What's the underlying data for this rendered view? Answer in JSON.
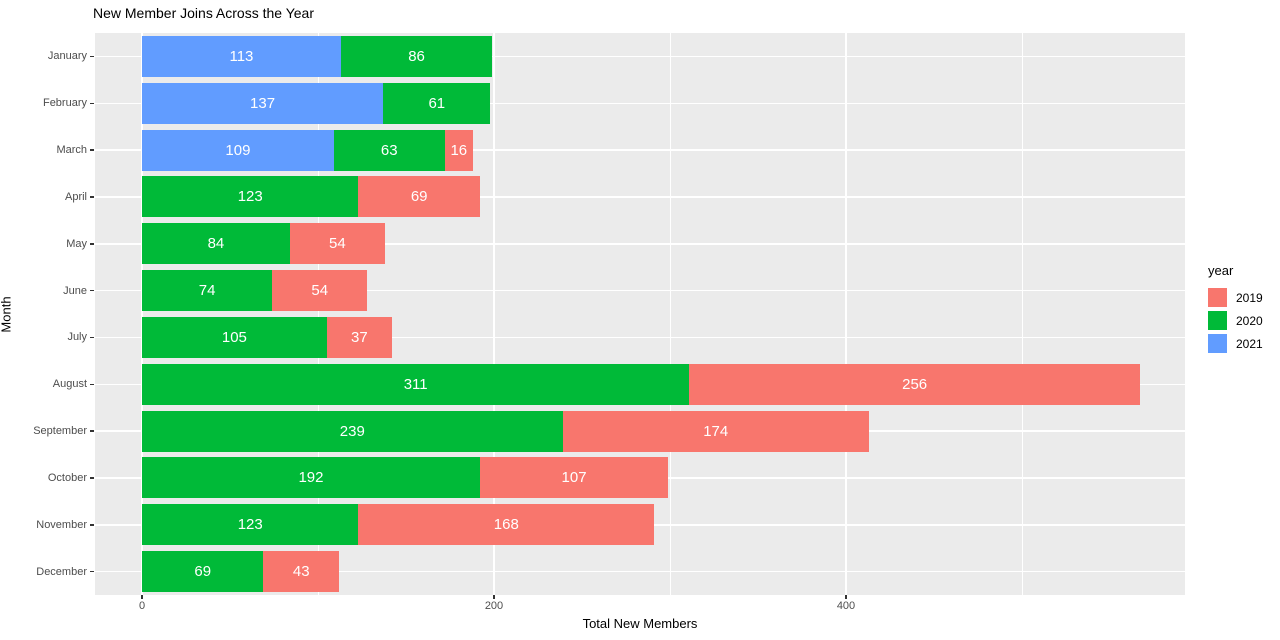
{
  "chart_data": {
    "type": "bar",
    "orientation": "horizontal",
    "stacked": true,
    "title": "New Member Joins Across the Year",
    "xlabel": "Total New Members",
    "ylabel": "Month",
    "categories": [
      "January",
      "February",
      "March",
      "April",
      "May",
      "June",
      "July",
      "August",
      "September",
      "October",
      "November",
      "December"
    ],
    "series": [
      {
        "name": "2021",
        "color": "#619CFF",
        "values": [
          113,
          137,
          109,
          0,
          0,
          0,
          0,
          0,
          0,
          0,
          0,
          0
        ]
      },
      {
        "name": "2020",
        "color": "#00BA38",
        "values": [
          86,
          61,
          63,
          123,
          84,
          74,
          105,
          311,
          239,
          192,
          123,
          69
        ]
      },
      {
        "name": "2019",
        "color": "#F8766D",
        "values": [
          0,
          0,
          16,
          69,
          54,
          54,
          37,
          256,
          174,
          107,
          168,
          43
        ]
      }
    ],
    "x_ticks": [
      0,
      200,
      400
    ],
    "x_minor_ticks": [
      100,
      300,
      500
    ],
    "xlim": [
      -28,
      596
    ],
    "bar_labels_shown": true,
    "bar_label_color": "#FFFFFF",
    "panel_background": "#EBEBEB",
    "gridline_color": "#FFFFFF",
    "tick_label_color": "#4D4D4D",
    "legend": {
      "title": "year",
      "position": "right",
      "entries": [
        {
          "label": "2019",
          "color": "#F8766D"
        },
        {
          "label": "2020",
          "color": "#00BA38"
        },
        {
          "label": "2021",
          "color": "#619CFF"
        }
      ]
    }
  }
}
